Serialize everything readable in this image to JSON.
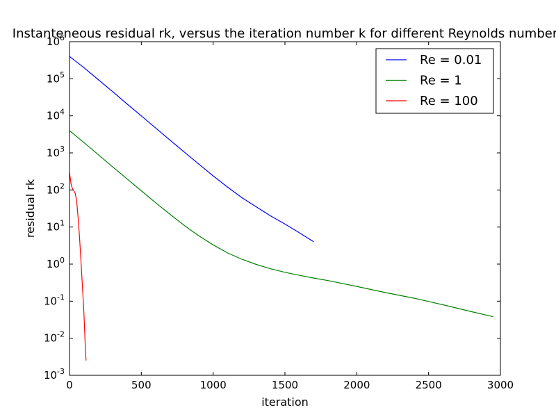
{
  "chart_data": {
    "type": "line",
    "title": "Instanteneous residual rk, versus the iteration number k for different Reynolds number",
    "xlabel": "iteration",
    "ylabel": "residual rk",
    "xlim": [
      0,
      3000
    ],
    "ylim": [
      0.001,
      1000000
    ],
    "yscale": "log",
    "grid": false,
    "legend_position": "top-right",
    "x_ticks": [
      {
        "value": 0,
        "label": "0"
      },
      {
        "value": 500,
        "label": "500"
      },
      {
        "value": 1000,
        "label": "1000"
      },
      {
        "value": 1500,
        "label": "1500"
      },
      {
        "value": 2000,
        "label": "2000"
      },
      {
        "value": 2500,
        "label": "2500"
      },
      {
        "value": 3000,
        "label": "3000"
      }
    ],
    "y_ticks": [
      {
        "value": 0.001,
        "base": "10",
        "exp": "-3"
      },
      {
        "value": 0.01,
        "base": "10",
        "exp": "-2"
      },
      {
        "value": 0.1,
        "base": "10",
        "exp": "-1"
      },
      {
        "value": 1,
        "base": "10",
        "exp": "0"
      },
      {
        "value": 10,
        "base": "10",
        "exp": "1"
      },
      {
        "value": 100,
        "base": "10",
        "exp": "2"
      },
      {
        "value": 1000,
        "base": "10",
        "exp": "3"
      },
      {
        "value": 10000,
        "base": "10",
        "exp": "4"
      },
      {
        "value": 100000,
        "base": "10",
        "exp": "5"
      },
      {
        "value": 1000000,
        "base": "10",
        "exp": "6"
      }
    ],
    "series": [
      {
        "name": "Re = 0.01",
        "color": "#0000ff",
        "x": [
          0,
          100,
          200,
          300,
          400,
          500,
          600,
          700,
          800,
          900,
          1000,
          1100,
          1200,
          1300,
          1400,
          1500,
          1600,
          1700
        ],
        "y": [
          400000,
          200000,
          95000,
          45000,
          21000,
          10000,
          4700,
          2200,
          1050,
          500,
          240,
          120,
          62,
          35,
          20,
          12,
          7,
          4
        ]
      },
      {
        "name": "Re = 1",
        "color": "#008000",
        "x": [
          0,
          100,
          200,
          300,
          400,
          500,
          600,
          700,
          800,
          900,
          1000,
          1100,
          1200,
          1300,
          1400,
          1500,
          1600,
          1700,
          1800,
          2000,
          2200,
          2400,
          2600,
          2800,
          2950
        ],
        "y": [
          4000,
          1900,
          900,
          420,
          200,
          95,
          45,
          22,
          11,
          5.8,
          3.3,
          2.0,
          1.35,
          0.98,
          0.75,
          0.6,
          0.5,
          0.42,
          0.36,
          0.25,
          0.17,
          0.12,
          0.08,
          0.052,
          0.038
        ]
      },
      {
        "name": "Re = 100",
        "color": "#ff0000",
        "x": [
          0,
          10,
          20,
          30,
          40,
          50,
          60,
          70,
          80,
          90,
          100,
          110,
          115
        ],
        "y": [
          300,
          150,
          110,
          95,
          80,
          50,
          18,
          5,
          1.2,
          0.25,
          0.05,
          0.006,
          0.0025
        ]
      }
    ]
  }
}
